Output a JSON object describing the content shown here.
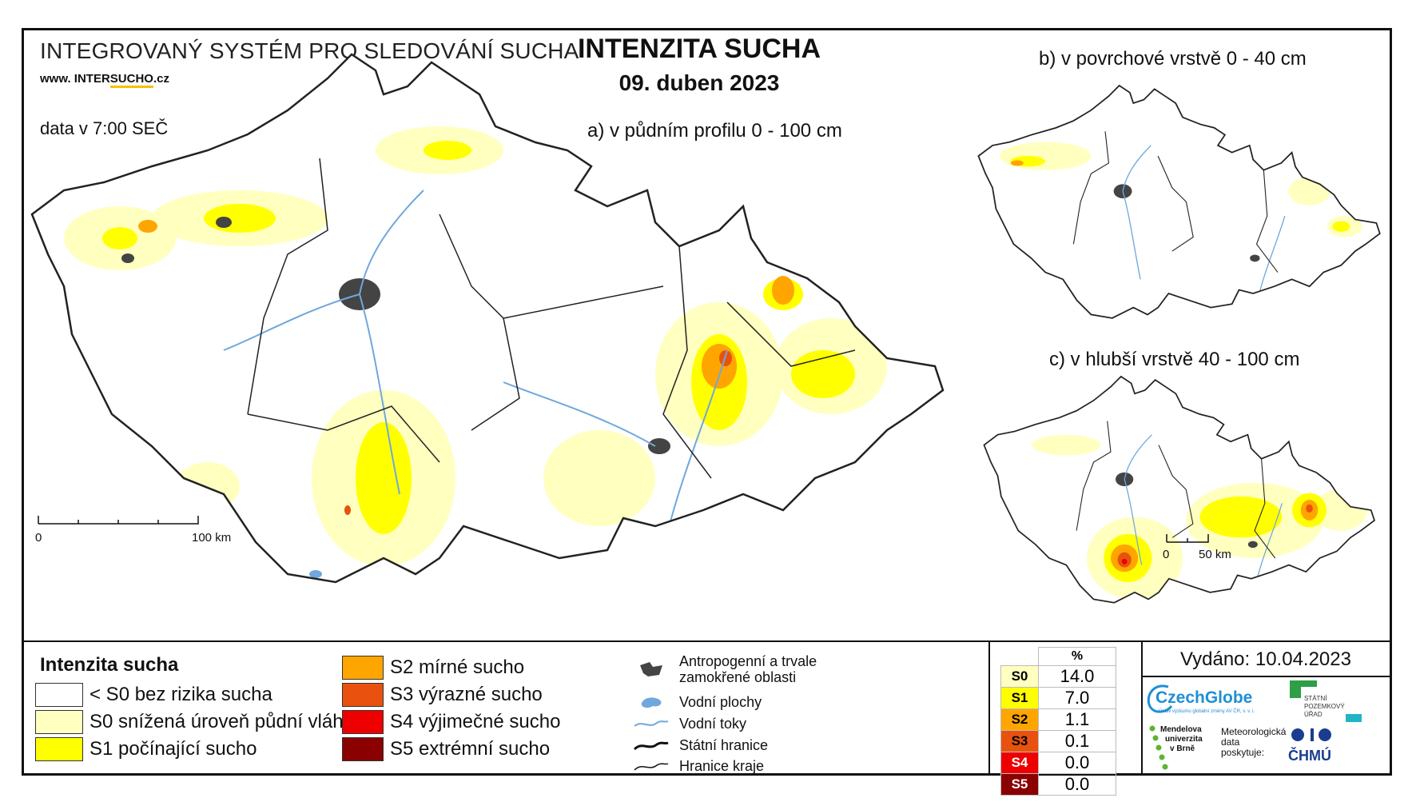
{
  "header": {
    "system_title": "INTEGROVANÝ SYSTÉM PRO SLEDOVÁNÍ SUCHA",
    "website_prefix": "www. INTER",
    "website_accent": "SUCHO",
    "website_suffix": ".cz",
    "data_time": "data v 7:00 SEČ",
    "main_title": "INTENZITA SUCHA",
    "date": "09. duben 2023"
  },
  "maps": {
    "a_title": "a) v půdním profilu 0 - 100 cm",
    "b_title": "b) v povrchové vrstvě 0 - 40 cm",
    "c_title": "c) v hlubší vrstvě 40 - 100 cm",
    "scale_main": {
      "zero": "0",
      "end": "100 km"
    },
    "scale_small": {
      "zero": "0",
      "end": "50 km"
    }
  },
  "legend": {
    "title": "Intenzita sucha",
    "classes": [
      {
        "label": "< S0 bez rizika sucha",
        "color": "#ffffff"
      },
      {
        "label": "S0 snížená úroveň půdní vláhy",
        "color": "#ffffc0"
      },
      {
        "label": "S1 počínající sucho",
        "color": "#ffff00"
      },
      {
        "label": "S2 mírné sucho",
        "color": "#ffa500"
      },
      {
        "label": "S3 výrazné sucho",
        "color": "#e8520e"
      },
      {
        "label": "S4 výjimečné sucho",
        "color": "#ee0000"
      },
      {
        "label": "S5 extrémní sucho",
        "color": "#8b0000"
      }
    ],
    "symbols": [
      {
        "label": "Antropogenní a trvale zamokřené oblasti",
        "icon": "urban-area-icon"
      },
      {
        "label": "Vodní plochy",
        "icon": "water-body-icon"
      },
      {
        "label": "Vodní toky",
        "icon": "river-icon"
      },
      {
        "label": "Státní hranice",
        "icon": "state-border-icon"
      },
      {
        "label": "Hranice kraje",
        "icon": "region-border-icon"
      }
    ]
  },
  "percent_table": {
    "header": "%",
    "rows": [
      {
        "key": "S0",
        "value": "14.0",
        "color": "#ffffc0"
      },
      {
        "key": "S1",
        "value": "7.0",
        "color": "#ffff00"
      },
      {
        "key": "S2",
        "value": "1.1",
        "color": "#ffa500"
      },
      {
        "key": "S3",
        "value": "0.1",
        "color": "#e8520e"
      },
      {
        "key": "S4",
        "value": "0.0",
        "color": "#ee0000"
      },
      {
        "key": "S5",
        "value": "0.0",
        "color": "#8b0000"
      }
    ]
  },
  "issued": "Vydáno: 10.04.2023",
  "logos": {
    "czechglobe": "CzechGlobe",
    "czechglobe_sub": "Ústav výzkumu globální změny AV ČR, v. v. i.",
    "spu_line1": "STÁTNÍ",
    "spu_line2": "POZEMKOVÝ",
    "spu_line3": "ÚŘAD",
    "mendel_line1": "Mendelova",
    "mendel_line2": "univerzita",
    "mendel_line3": "v Brně",
    "met_line1": "Meteorologická",
    "met_line2": "data",
    "met_line3": "poskytuje:",
    "chmu": "ČHMÚ"
  }
}
